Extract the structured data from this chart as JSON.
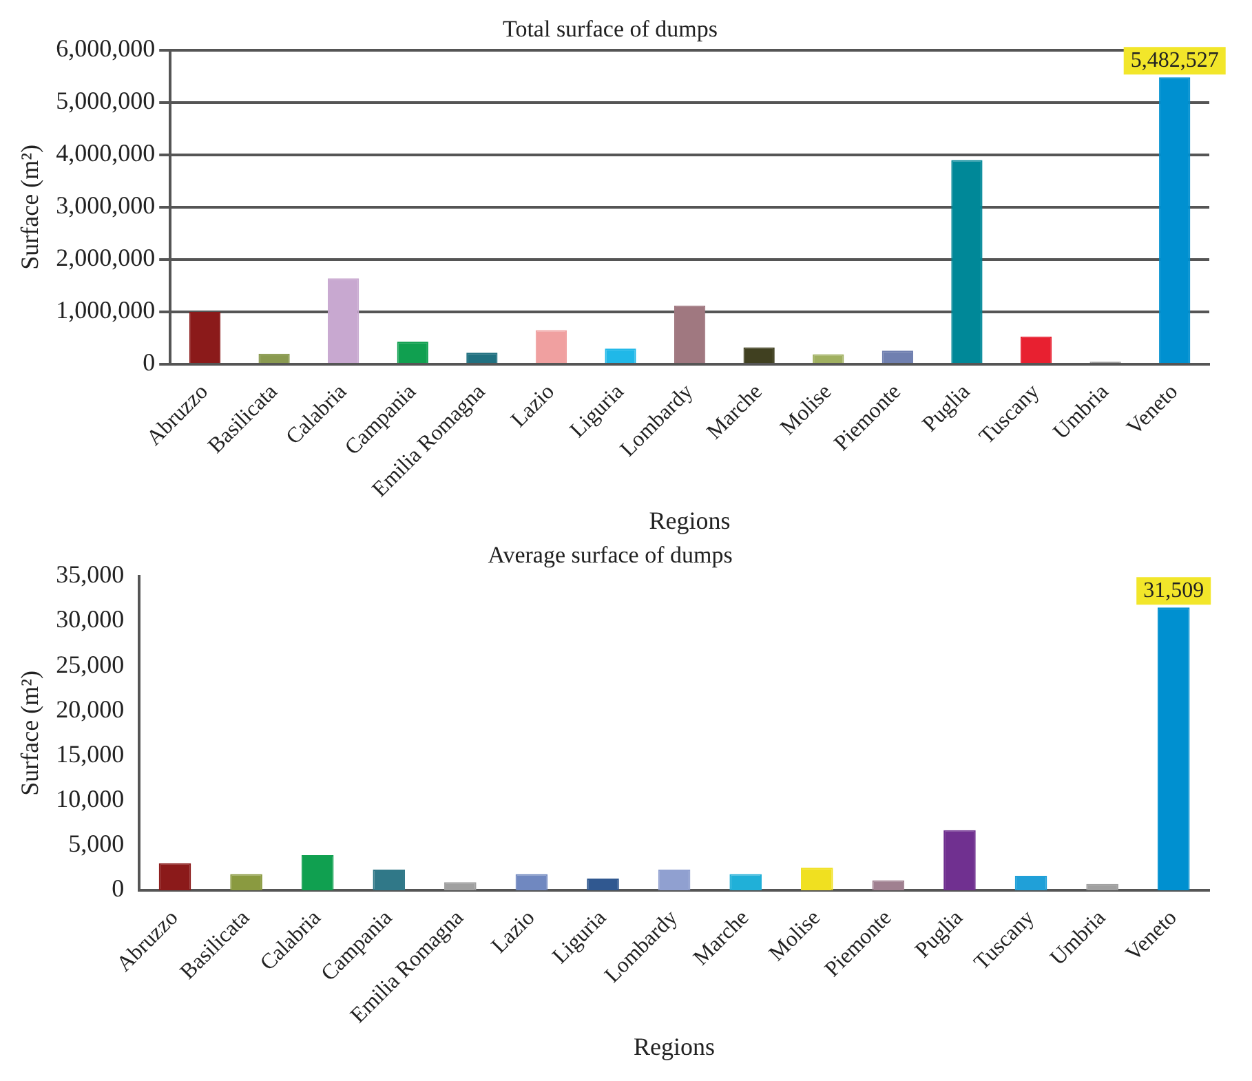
{
  "chart_data": [
    {
      "type": "bar",
      "title": "Total surface of dumps",
      "xlabel": "Regions",
      "ylabel": "Surface (m²)",
      "categories": [
        "Abruzzo",
        "Basilicata",
        "Calabria",
        "Campania",
        "Emilia Romagna",
        "Lazio",
        "Liguria",
        "Lombardy",
        "Marche",
        "Molise",
        "Piemonte",
        "Puglia",
        "Tuscany",
        "Umbria",
        "Veneto"
      ],
      "values": [
        1000000,
        200000,
        1640000,
        430000,
        220000,
        650000,
        300000,
        1120000,
        320000,
        190000,
        260000,
        3900000,
        530000,
        50000,
        5482527
      ],
      "value_labels": [
        null,
        null,
        null,
        null,
        null,
        null,
        null,
        null,
        null,
        null,
        null,
        null,
        null,
        null,
        "5,482,527"
      ],
      "colors": [
        "#8b1a1a",
        "#8a9a50",
        "#c8a8d0",
        "#10a050",
        "#207080",
        "#f0a0a0",
        "#20b8e8",
        "#a07880",
        "#404020",
        "#a0b060",
        "#7080b0",
        "#008898",
        "#e82030",
        "#a0a0a0",
        "#0090d0"
      ],
      "ylim": [
        0,
        6000000
      ],
      "yticks": [
        {
          "value": 0,
          "label": "0"
        },
        {
          "value": 1000000,
          "label": "1,000,000"
        },
        {
          "value": 2000000,
          "label": "2,000,000"
        },
        {
          "value": 3000000,
          "label": "3,000,000"
        },
        {
          "value": 4000000,
          "label": "4,000,000"
        },
        {
          "value": 5000000,
          "label": "5,000,000"
        },
        {
          "value": 6000000,
          "label": "6,000,000"
        }
      ],
      "grid": "y",
      "legend": false
    },
    {
      "type": "bar",
      "title": "Average surface of dumps",
      "xlabel": "Regions",
      "ylabel": "Surface (m²)",
      "categories": [
        "Abruzzo",
        "Basilicata",
        "Calabria",
        "Campania",
        "Emilia Romagna",
        "Lazio",
        "Liguria",
        "Lombardy",
        "Marche",
        "Molise",
        "Piemonte",
        "Puglia",
        "Tuscany",
        "Umbria",
        "Veneto"
      ],
      "values": [
        3000,
        1800,
        3900,
        2300,
        900,
        1800,
        1300,
        2300,
        1800,
        2500,
        1100,
        6700,
        1600,
        700,
        31509
      ],
      "value_labels": [
        null,
        null,
        null,
        null,
        null,
        null,
        null,
        null,
        null,
        null,
        null,
        null,
        null,
        null,
        "31,509"
      ],
      "colors": [
        "#8b1a1a",
        "#8a9a40",
        "#10a050",
        "#307888",
        "#a0a0a0",
        "#7088c0",
        "#305890",
        "#90a0d0",
        "#20b0d8",
        "#f0e020",
        "#a08090",
        "#703090",
        "#20a0d8",
        "#a0a0a0",
        "#0090d0"
      ],
      "ylim": [
        0,
        35000
      ],
      "yticks": [
        {
          "value": 0,
          "label": "0"
        },
        {
          "value": 5000,
          "label": "5,000"
        },
        {
          "value": 10000,
          "label": "10,000"
        },
        {
          "value": 15000,
          "label": "15,000"
        },
        {
          "value": 20000,
          "label": "20,000"
        },
        {
          "value": 25000,
          "label": "25,000"
        },
        {
          "value": 30000,
          "label": "30,000"
        },
        {
          "value": 35000,
          "label": "35,000"
        }
      ],
      "grid": false,
      "legend": false
    }
  ]
}
